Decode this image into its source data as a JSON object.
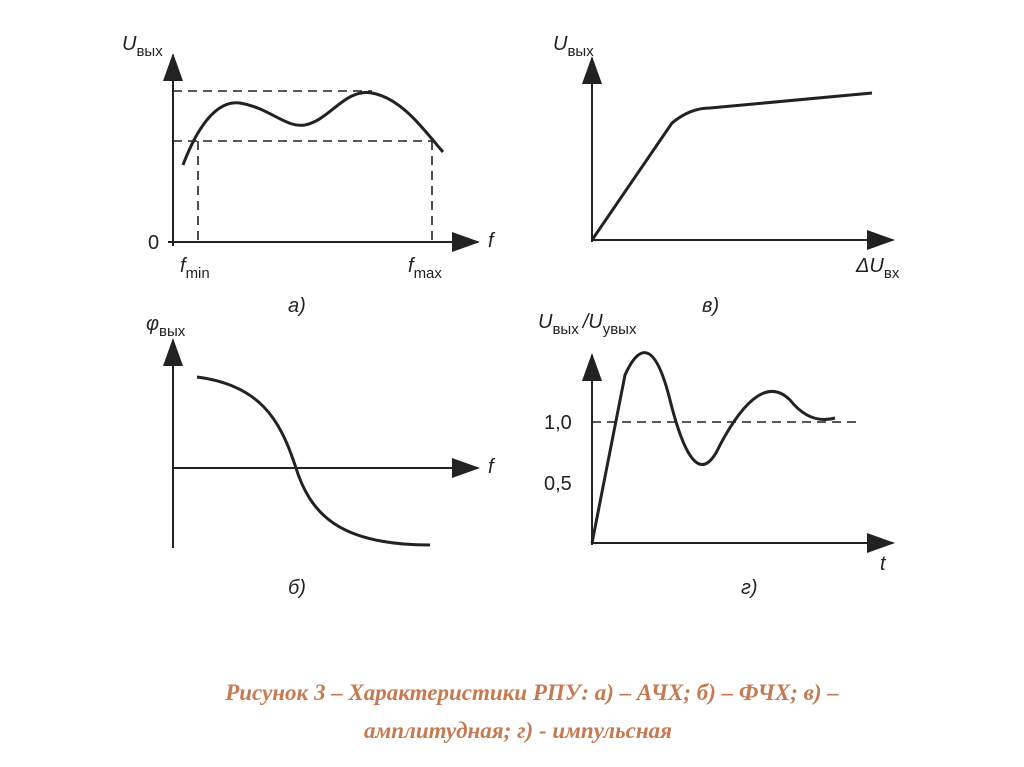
{
  "panels": [
    {
      "label": "а)",
      "y_axis": {
        "symbol": "U",
        "subscript": "вых"
      },
      "origin": "0",
      "x_axis": "f",
      "markers": [
        {
          "symbol": "f",
          "subscript": "min"
        },
        {
          "symbol": "f",
          "subscript": "max"
        }
      ]
    },
    {
      "label": "в)",
      "y_axis": {
        "symbol": "U",
        "subscript": "вых"
      },
      "x_axis": {
        "symbol": "ΔU",
        "subscript": "вх"
      }
    },
    {
      "label": "б)",
      "y_axis": {
        "symbol": "φ",
        "subscript": "вых"
      },
      "x_axis": "f"
    },
    {
      "label": "г)",
      "y_axis": {
        "symbol": "U",
        "subscript": "вых",
        "separator": "/U",
        "subscript2": "увых"
      },
      "x_axis": "t",
      "levels": [
        "1,0",
        "0,5"
      ]
    }
  ],
  "caption": {
    "lines": [
      "Рисунок 3 – Характеристики РПУ: а) – АЧХ; б) – ФЧХ; в) –",
      "амплитудная; г) - импульсная"
    ]
  }
}
